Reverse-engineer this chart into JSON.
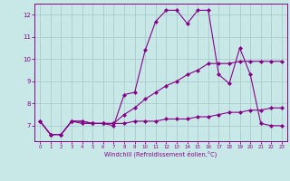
{
  "xlabel": "Windchill (Refroidissement éolien,°C)",
  "background_color": "#c8e8e8",
  "grid_color": "#a8cccc",
  "line_color": "#880088",
  "x_data": [
    0,
    1,
    2,
    3,
    4,
    5,
    6,
    7,
    8,
    9,
    10,
    11,
    12,
    13,
    14,
    15,
    16,
    17,
    18,
    19,
    20,
    21,
    22,
    23
  ],
  "line1_y": [
    7.2,
    6.6,
    6.6,
    7.2,
    7.1,
    7.1,
    7.1,
    7.0,
    8.4,
    8.5,
    10.4,
    11.7,
    12.2,
    12.2,
    11.6,
    12.2,
    12.2,
    9.3,
    8.9,
    10.5,
    9.3,
    7.1,
    7.0,
    7.0
  ],
  "line2_y": [
    7.2,
    6.6,
    6.6,
    7.2,
    7.2,
    7.1,
    7.1,
    7.1,
    7.1,
    7.2,
    7.2,
    7.2,
    7.3,
    7.3,
    7.3,
    7.4,
    7.4,
    7.5,
    7.6,
    7.6,
    7.7,
    7.7,
    7.8,
    7.8
  ],
  "line3_y": [
    7.2,
    6.6,
    6.6,
    7.2,
    7.2,
    7.1,
    7.1,
    7.1,
    7.5,
    7.8,
    8.2,
    8.5,
    8.8,
    9.0,
    9.3,
    9.5,
    9.8,
    9.8,
    9.8,
    9.9,
    9.9,
    9.9,
    9.9,
    9.9
  ],
  "xlim": [
    -0.5,
    23.5
  ],
  "ylim": [
    6.3,
    12.5
  ],
  "yticks": [
    7,
    8,
    9,
    10,
    11,
    12
  ],
  "xticks": [
    0,
    1,
    2,
    3,
    4,
    5,
    6,
    7,
    8,
    9,
    10,
    11,
    12,
    13,
    14,
    15,
    16,
    17,
    18,
    19,
    20,
    21,
    22,
    23
  ],
  "marker": "D",
  "markersize": 2.0,
  "linewidth": 0.8
}
